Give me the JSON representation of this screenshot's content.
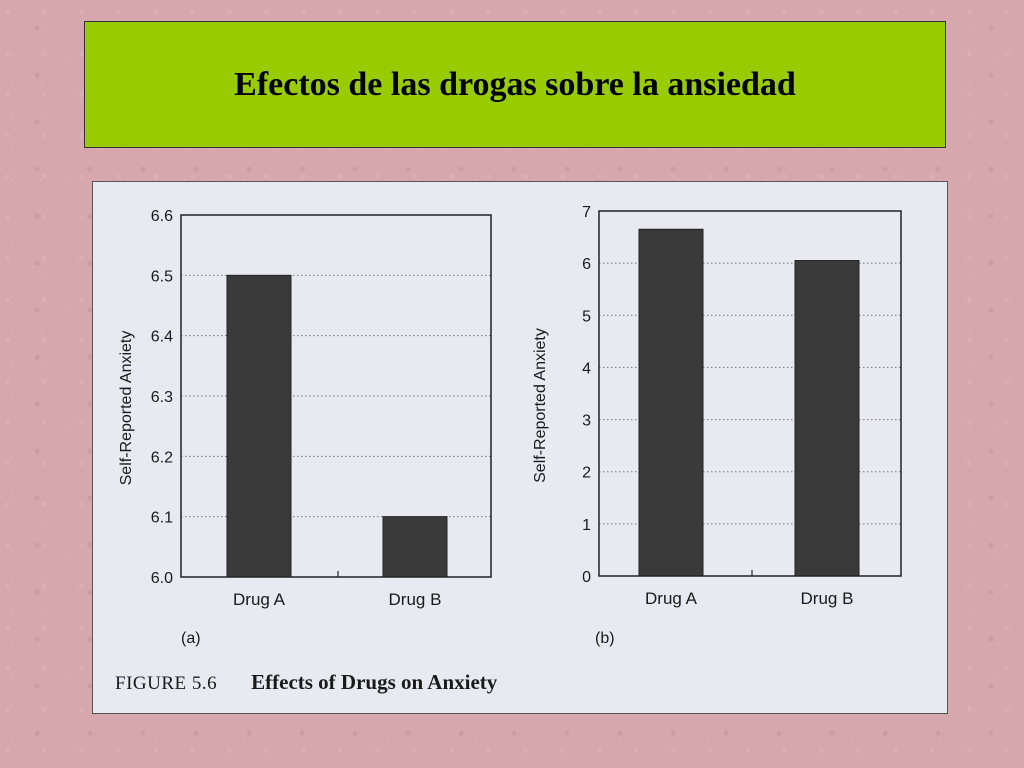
{
  "slide": {
    "title": "Efectos de las drogas sobre la ansiedad"
  },
  "figure": {
    "number": "FIGURE  5.6",
    "caption": "Effects of Drugs on Anxiety"
  },
  "chart_data": [
    {
      "type": "bar",
      "panel_label": "(a)",
      "categories": [
        "Drug A",
        "Drug B"
      ],
      "values": [
        6.5,
        6.1
      ],
      "ylabel": "Self-Reported Anxiety",
      "ylim": [
        6.0,
        6.6
      ],
      "yticks": [
        "6.0",
        "6.1",
        "6.2",
        "6.3",
        "6.4",
        "6.5",
        "6.6"
      ],
      "grid": "horizontal dotted",
      "bar_color": "#3a3a3a"
    },
    {
      "type": "bar",
      "panel_label": "(b)",
      "categories": [
        "Drug A",
        "Drug B"
      ],
      "values": [
        6.65,
        6.05
      ],
      "ylabel": "Self-Reported Anxiety",
      "ylim": [
        0,
        7
      ],
      "yticks": [
        "0",
        "1",
        "2",
        "3",
        "4",
        "5",
        "6",
        "7"
      ],
      "grid": "horizontal dotted",
      "bar_color": "#3a3a3a"
    }
  ]
}
